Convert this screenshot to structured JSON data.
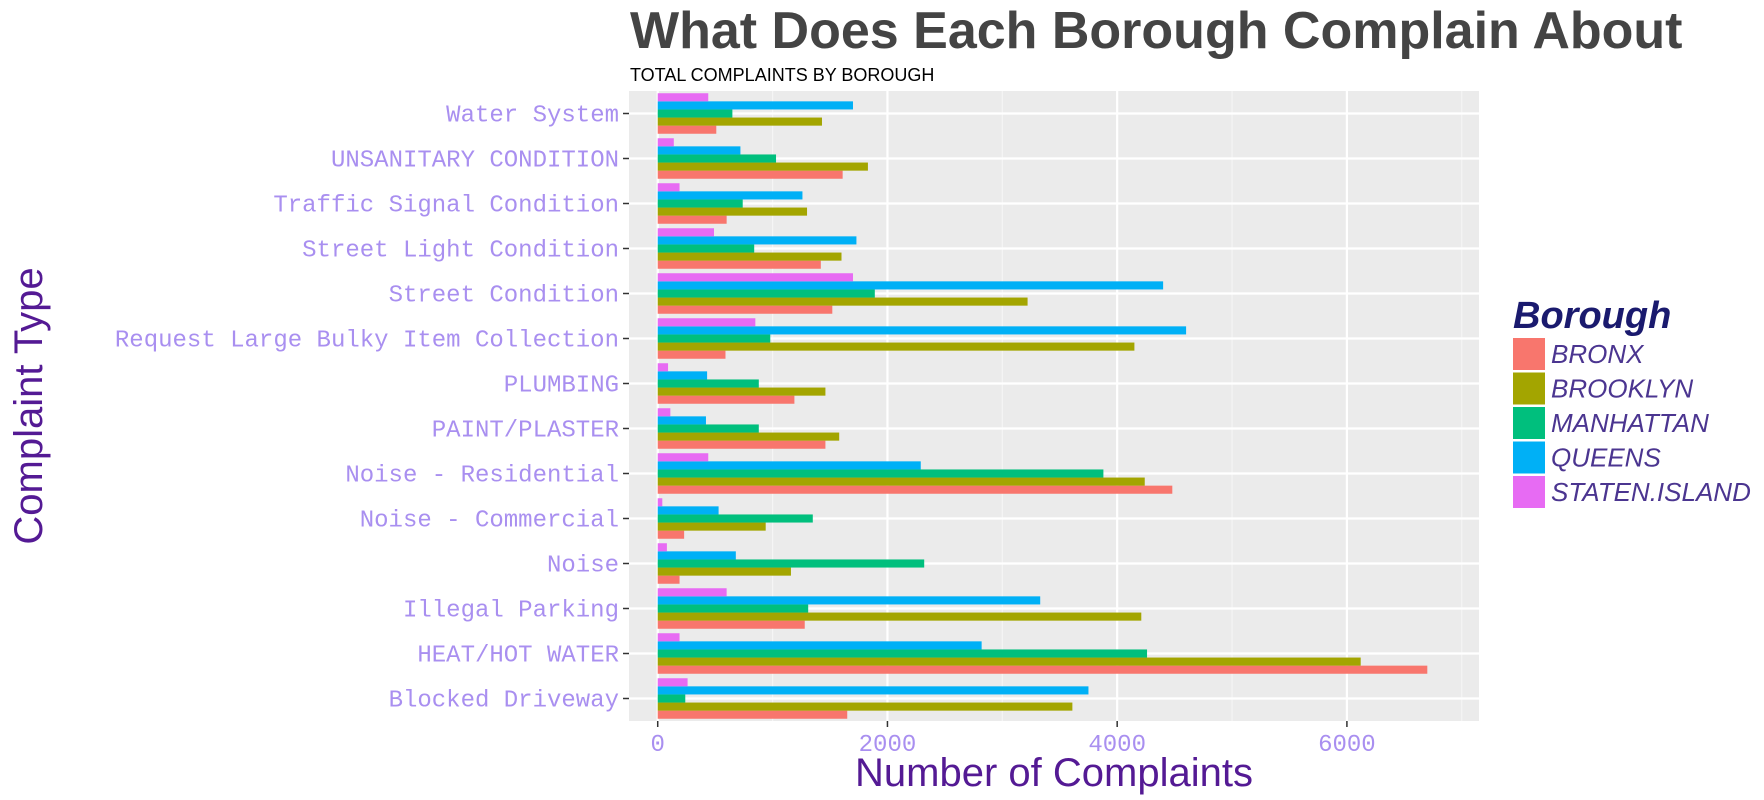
{
  "chart_data": {
    "type": "bar",
    "orientation": "horizontal",
    "title": "What Does Each Borough Complain About",
    "subtitle": "TOTAL COMPLAINTS BY BOROUGH",
    "xlabel": "Number of Complaints",
    "ylabel": "Complaint Type",
    "xlim": [
      -250,
      7150
    ],
    "xticks": [
      0,
      2000,
      4000,
      6000
    ],
    "xtick_labels": [
      "0",
      "2000",
      "4000",
      "6000"
    ],
    "grid": true,
    "legend_title": "Borough",
    "legend_position": "right",
    "categories": [
      "Blocked Driveway",
      "HEAT/HOT WATER",
      "Illegal Parking",
      "Noise",
      "Noise - Commercial",
      "Noise - Residential",
      "PAINT/PLASTER",
      "PLUMBING",
      "Request Large Bulky Item Collection",
      "Street Condition",
      "Street Light Condition",
      "Traffic Signal Condition",
      "UNSANITARY CONDITION",
      "Water System"
    ],
    "series": [
      {
        "name": "BRONX",
        "color": "#F8766D",
        "values": [
          1650,
          6700,
          1280,
          190,
          230,
          4480,
          1460,
          1190,
          590,
          1520,
          1420,
          600,
          1610,
          510
        ]
      },
      {
        "name": "BROOKLYN",
        "color": "#A3A500",
        "values": [
          3610,
          6120,
          4210,
          1160,
          940,
          4240,
          1580,
          1460,
          4150,
          3220,
          1600,
          1300,
          1830,
          1430
        ]
      },
      {
        "name": "MANHATTAN",
        "color": "#00BF7D",
        "values": [
          240,
          4260,
          1310,
          2320,
          1350,
          3880,
          880,
          880,
          980,
          1890,
          840,
          740,
          1030,
          650
        ]
      },
      {
        "name": "QUEENS",
        "color": "#00B0F6",
        "values": [
          3750,
          2820,
          3330,
          680,
          530,
          2290,
          420,
          430,
          4600,
          4400,
          1730,
          1260,
          720,
          1700
        ]
      },
      {
        "name": "STATEN.ISLAND",
        "color": "#E76BF3",
        "values": [
          260,
          190,
          600,
          80,
          40,
          440,
          110,
          90,
          850,
          1700,
          490,
          190,
          140,
          440
        ]
      }
    ]
  },
  "colors": {
    "panel_bg": "#EBEBEB",
    "grid_major": "#FFFFFF",
    "title": "#444444",
    "ytick_text": "#A98FF0",
    "xtick_text": "#A98FF0",
    "axis_title": "#541A94",
    "legend_title": "#1A1A6E",
    "legend_label": "#4B3590"
  }
}
